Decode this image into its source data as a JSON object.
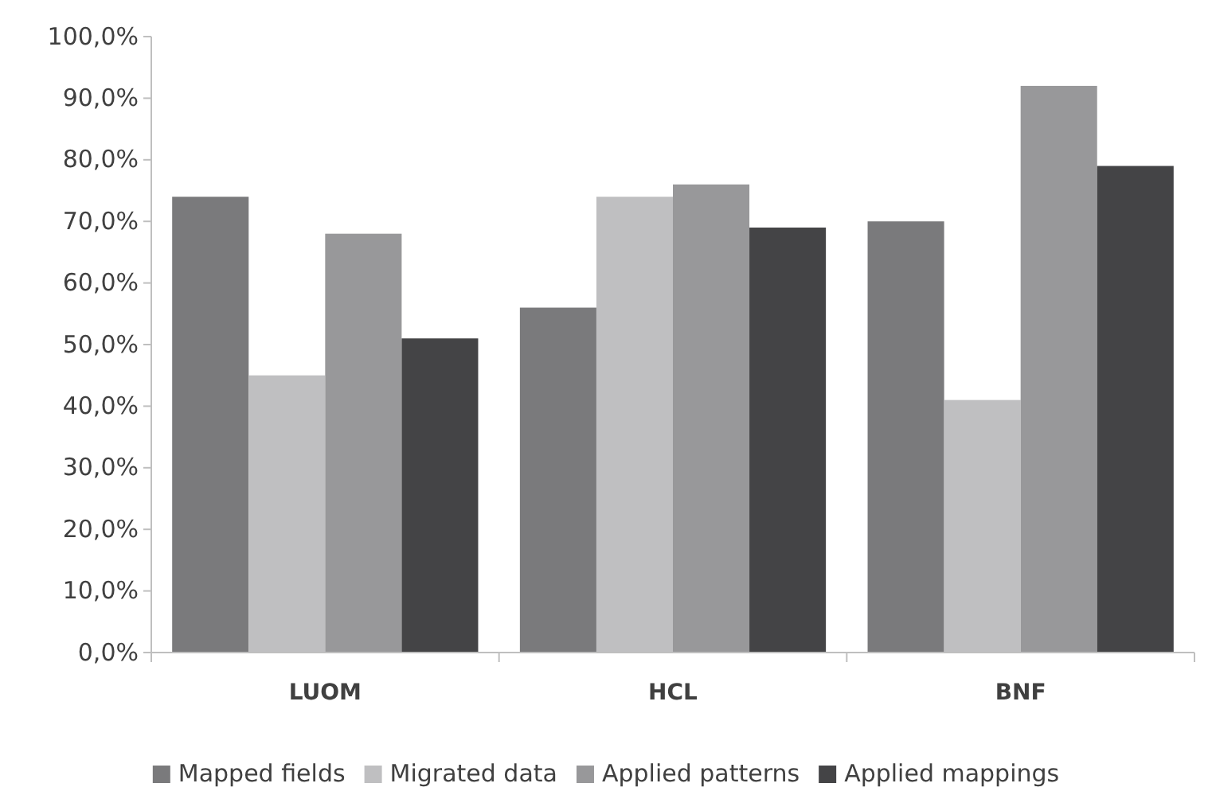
{
  "chart_data": {
    "type": "bar",
    "categories": [
      "LUOM",
      "HCL",
      "BNF"
    ],
    "series": [
      {
        "name": "Mapped fields",
        "color": "#7a7a7c",
        "values": [
          74,
          56,
          70
        ]
      },
      {
        "name": "Migrated data",
        "color": "#bfbfc1",
        "values": [
          45,
          74,
          41
        ]
      },
      {
        "name": "Applied patterns",
        "color": "#98989a",
        "values": [
          68,
          76,
          92
        ]
      },
      {
        "name": "Applied mappings",
        "color": "#444446",
        "values": [
          51,
          69,
          79
        ]
      }
    ],
    "ylim": [
      0,
      100
    ],
    "yticks": [
      {
        "value": 0,
        "label": "0,0%"
      },
      {
        "value": 10,
        "label": "10,0%"
      },
      {
        "value": 20,
        "label": "20,0%"
      },
      {
        "value": 30,
        "label": "30,0%"
      },
      {
        "value": 40,
        "label": "40,0%"
      },
      {
        "value": 50,
        "label": "50,0%"
      },
      {
        "value": 60,
        "label": "60,0%"
      },
      {
        "value": 70,
        "label": "70,0%"
      },
      {
        "value": 80,
        "label": "80,0%"
      },
      {
        "value": 90,
        "label": "90,0%"
      },
      {
        "value": 100,
        "label": "100,0%"
      }
    ],
    "grid": false,
    "legend": "bottom"
  }
}
